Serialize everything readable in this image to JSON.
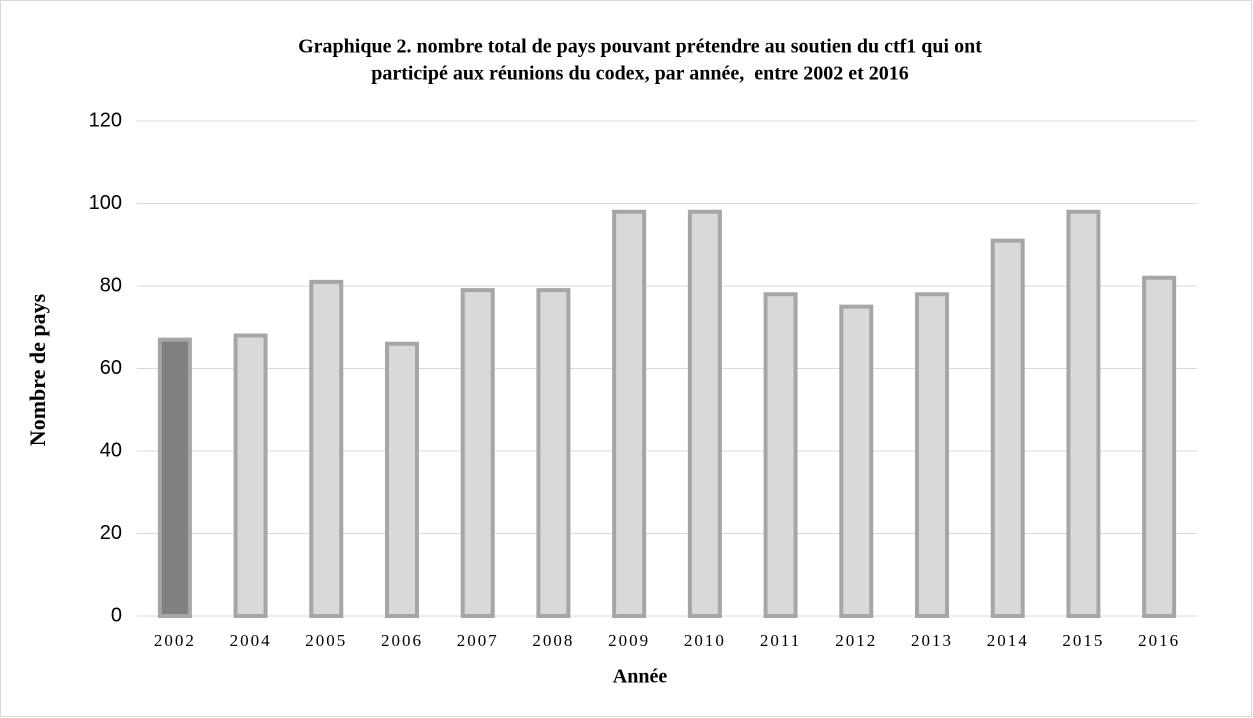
{
  "chart_data": {
    "type": "bar",
    "title": [
      "Graphique 2. nombre total de pays pouvant prétendre au soutien du ctf1 qui ont",
      "participé aux réunions du codex, par année,  entre 2002 et 2016"
    ],
    "x_label": "Année",
    "y_label": "Nombre de pays",
    "categories": [
      "2002",
      "2004",
      "2005",
      "2006",
      "2007",
      "2008",
      "2009",
      "2010",
      "2011",
      "2012",
      "2013",
      "2014",
      "2015",
      "2016"
    ],
    "values": [
      67,
      68,
      81,
      66,
      79,
      79,
      98,
      98,
      78,
      75,
      78,
      91,
      98,
      82
    ],
    "colors": [
      "#808080",
      "#d9d9d9",
      "#d9d9d9",
      "#d9d9d9",
      "#d9d9d9",
      "#d9d9d9",
      "#d9d9d9",
      "#d9d9d9",
      "#d9d9d9",
      "#d9d9d9",
      "#d9d9d9",
      "#d9d9d9",
      "#d9d9d9",
      "#d9d9d9"
    ],
    "edge_color": "#a6a6a6",
    "ylim": [
      0,
      120
    ],
    "yticks": [
      0,
      20,
      40,
      60,
      80,
      100,
      120
    ],
    "grid": true
  }
}
